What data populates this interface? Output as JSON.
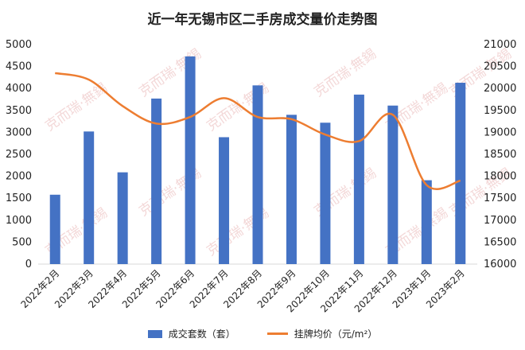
{
  "chart_data": {
    "type": "bar+line",
    "title": "近一年无锡市区二手房成交量价走势图",
    "categories": [
      "2022年2月",
      "2022年3月",
      "2022年4月",
      "2022年5月",
      "2022年6月",
      "2022年7月",
      "2022年8月",
      "2022年9月",
      "2022年10月",
      "2022年11月",
      "2022年12月",
      "2023年1月",
      "2023年2月"
    ],
    "series": [
      {
        "name": "成交套数（套）",
        "type": "bar",
        "axis": "left",
        "color": "#4472C4",
        "values": [
          1580,
          3020,
          2090,
          3770,
          4730,
          2890,
          4070,
          3400,
          3220,
          3860,
          3610,
          1910,
          4130
        ]
      },
      {
        "name": "挂牌均价（元/m²）",
        "type": "line",
        "axis": "right",
        "color": "#ED7D31",
        "values": [
          20350,
          20200,
          19600,
          19200,
          19350,
          19780,
          19350,
          19300,
          18950,
          18800,
          19400,
          17800,
          17900
        ]
      }
    ],
    "ylim_left": [
      0,
      5000
    ],
    "ylim_right": [
      16000,
      21000
    ],
    "yticks_left": [
      "0",
      "500",
      "1000",
      "1500",
      "2000",
      "2500",
      "3000",
      "3500",
      "4000",
      "4500",
      "5000"
    ],
    "yticks_right": [
      "16000",
      "16500",
      "17000",
      "17500",
      "18000",
      "18500",
      "19000",
      "19500",
      "20000",
      "20500",
      "21000"
    ],
    "grid": false,
    "legend_position": "bottom",
    "watermark": "克而瑞·無錫"
  }
}
